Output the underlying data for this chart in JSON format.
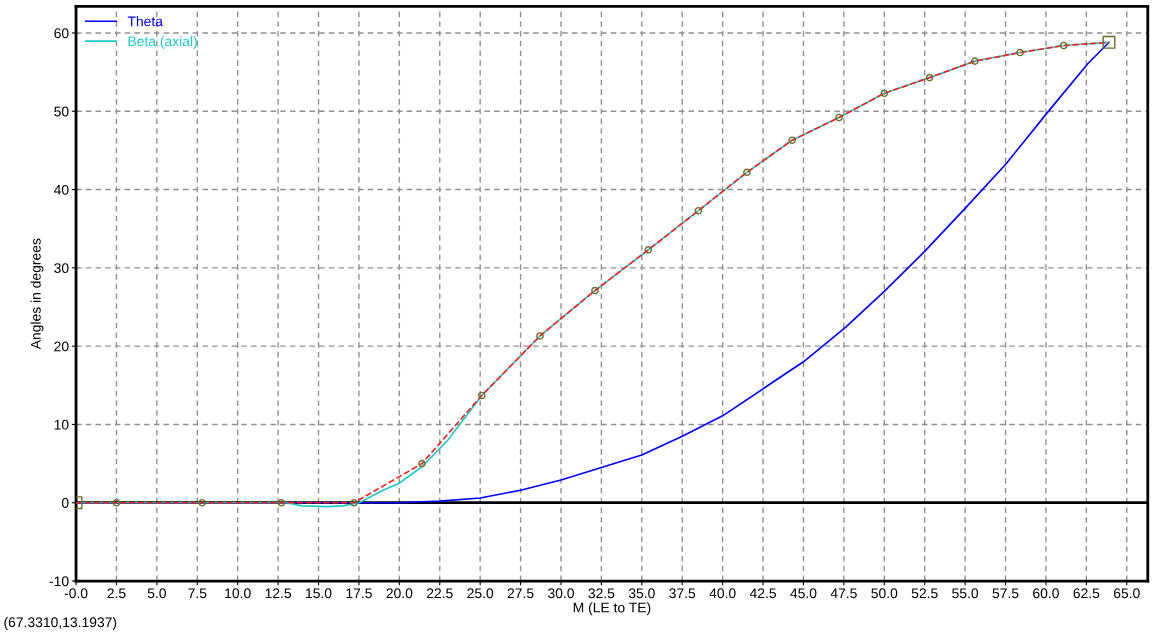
{
  "chart_data": {
    "type": "line",
    "xlabel": "M (LE to TE)",
    "ylabel": "Angles in degrees",
    "xlim": [
      0,
      66.3
    ],
    "ylim": [
      -10,
      63.4
    ],
    "xticks": [
      {
        "value": 0,
        "label": "-0.0"
      },
      {
        "value": 2.5,
        "label": "2.5"
      },
      {
        "value": 5,
        "label": "5.0"
      },
      {
        "value": 7.5,
        "label": "7.5"
      },
      {
        "value": 10,
        "label": "10.0"
      },
      {
        "value": 12.5,
        "label": "12.5"
      },
      {
        "value": 15,
        "label": "15.0"
      },
      {
        "value": 17.5,
        "label": "17.5"
      },
      {
        "value": 20,
        "label": "20.0"
      },
      {
        "value": 22.5,
        "label": "22.5"
      },
      {
        "value": 25,
        "label": "25.0"
      },
      {
        "value": 27.5,
        "label": "27.5"
      },
      {
        "value": 30,
        "label": "30.0"
      },
      {
        "value": 32.5,
        "label": "32.5"
      },
      {
        "value": 35,
        "label": "35.0"
      },
      {
        "value": 37.5,
        "label": "37.5"
      },
      {
        "value": 40,
        "label": "40.0"
      },
      {
        "value": 42.5,
        "label": "42.5"
      },
      {
        "value": 45,
        "label": "45.0"
      },
      {
        "value": 47.5,
        "label": "47.5"
      },
      {
        "value": 50,
        "label": "50.0"
      },
      {
        "value": 52.5,
        "label": "52.5"
      },
      {
        "value": 55,
        "label": "55.0"
      },
      {
        "value": 57.5,
        "label": "57.5"
      },
      {
        "value": 60,
        "label": "60.0"
      },
      {
        "value": 62.5,
        "label": "62.5"
      },
      {
        "value": 65,
        "label": "65.0"
      }
    ],
    "yticks": [
      -10,
      0,
      10,
      20,
      30,
      40,
      50,
      60
    ],
    "grid": true,
    "legend": "top left",
    "ref_lines": [
      {
        "axis": "y",
        "value": 0,
        "color": "#000000",
        "line_style": "solid"
      }
    ],
    "annotations": [
      "(67.3310,13.1937)"
    ],
    "series": [
      {
        "name": "Theta",
        "color": "#0000ff",
        "line_style": "solid",
        "marker": "none",
        "x": [
          0,
          17.5,
          20,
          22.5,
          25,
          27.5,
          30,
          32.5,
          35,
          37.5,
          40,
          43.4,
          45,
          47.6,
          50,
          52.5,
          55,
          57.5,
          60,
          62.6,
          63.9
        ],
        "values": [
          0,
          0,
          0,
          0.2,
          0.6,
          1.6,
          2.9,
          4.5,
          6.1,
          8.5,
          11.1,
          15.8,
          18.0,
          22.4,
          27.0,
          32.1,
          37.6,
          43.2,
          49.6,
          56.1,
          58.8
        ]
      },
      {
        "name": "Beta (axial)",
        "color": "#20c8c8",
        "line_style": "solid",
        "marker": "none",
        "x": [
          0,
          13,
          14,
          15.5,
          16.5,
          17.5,
          19,
          20,
          21.4,
          23,
          25.1,
          28.7,
          32.1,
          35.4,
          38.5,
          41.5,
          44.3,
          47.2,
          50.0,
          52.8,
          55.6,
          58.4,
          61.1,
          63.9
        ],
        "values": [
          0,
          0,
          -0.4,
          -0.5,
          -0.4,
          0,
          1.6,
          2.5,
          4.6,
          8.0,
          13.7,
          21.3,
          27.1,
          32.3,
          37.3,
          42.2,
          46.3,
          49.2,
          52.3,
          54.3,
          56.4,
          57.5,
          58.4,
          58.8
        ]
      },
      {
        "color": "#ff2020",
        "line_style": "dashed",
        "x": [
          0,
          2.5,
          7.8,
          12.7,
          17.2,
          21.4,
          25.1,
          28.7,
          32.1,
          35.4,
          38.5,
          41.5,
          44.3,
          47.2,
          50.0,
          52.8,
          55.6,
          58.4,
          61.1,
          63.9
        ],
        "values": [
          0,
          0,
          0,
          0,
          0,
          5.0,
          13.7,
          21.3,
          27.1,
          32.3,
          37.3,
          42.2,
          46.3,
          49.2,
          52.3,
          54.3,
          56.4,
          57.5,
          58.4,
          58.8
        ]
      },
      {
        "type": "scatter",
        "color": "#6b6b2a",
        "marker": "circle",
        "x": [
          2.5,
          7.8,
          12.7,
          17.2,
          21.4,
          25.1,
          28.7,
          32.1,
          35.4,
          38.5,
          41.5,
          44.3,
          47.2,
          50.0,
          52.8,
          55.6,
          58.4,
          61.1
        ],
        "values": [
          0,
          0,
          0,
          0,
          5.0,
          13.7,
          21.3,
          27.1,
          32.3,
          37.3,
          42.2,
          46.3,
          49.2,
          52.3,
          54.3,
          56.4,
          57.5,
          58.4
        ]
      },
      {
        "type": "scatter",
        "color": "#6b6b2a",
        "marker": "square",
        "x": [
          0,
          63.9
        ],
        "values": [
          0,
          58.8
        ]
      }
    ]
  }
}
